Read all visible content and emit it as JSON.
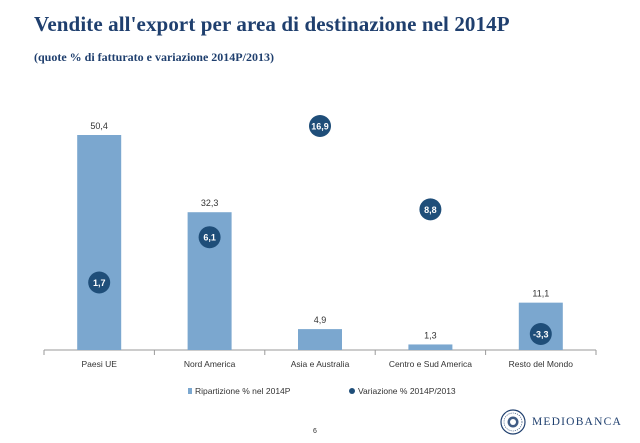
{
  "title": "Vendite all'export per area di destinazione nel 2014P",
  "subtitle": "(quote % di fatturato e variazione 2014P/2013)",
  "chart_data": {
    "type": "bar",
    "categories": [
      "Paesi UE",
      "Nord America",
      "Asia e Australia",
      "Centro e Sud America",
      "Resto del Mondo"
    ],
    "series": [
      {
        "name": "Ripartizione % nel 2014P",
        "values": [
          50.4,
          32.3,
          4.9,
          1.3,
          11.1
        ],
        "labels": [
          "50,4",
          "32,3",
          "4,9",
          "1,3",
          "11,1"
        ],
        "color": "#7ba7cf",
        "marker": "bar"
      },
      {
        "name": "Variazione % 2014P/2013",
        "values": [
          1.7,
          6.1,
          16.9,
          8.8,
          -3.3
        ],
        "labels": [
          "1,7",
          "6,1",
          "16,9",
          "8,8",
          "-3,3"
        ],
        "color": "#1f4e79",
        "marker": "circle"
      }
    ],
    "ylim_bars": [
      0,
      55
    ],
    "ylim_markers": [
      -5,
      18
    ],
    "legend_position": "bottom-center"
  },
  "footer": {
    "page_number": "6",
    "logo_text": "MEDIOBANCA"
  }
}
